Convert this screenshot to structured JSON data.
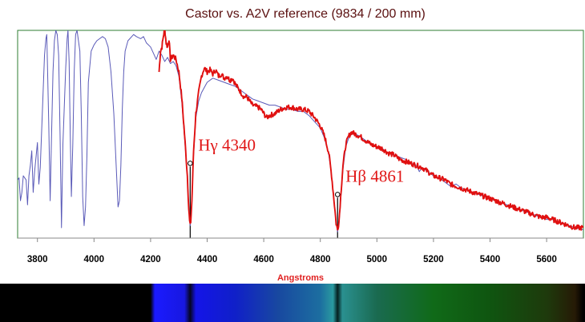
{
  "chart_data": {
    "type": "line",
    "title": "Castor vs. A2V reference (9834 / 200 mm)",
    "xlabel": "Angstroms",
    "ylabel": "",
    "xlim": [
      3730,
      5730
    ],
    "ylim": [
      0,
      1
    ],
    "x_ticks": [
      3800,
      4000,
      4200,
      4400,
      4600,
      4800,
      5000,
      5200,
      5400,
      5600
    ],
    "grid": false,
    "series": [
      {
        "role": "reference",
        "color": "#5a5ab8",
        "points": [
          [
            3730,
            0.28
          ],
          [
            3735,
            0.29
          ],
          [
            3740,
            0.18
          ],
          [
            3745,
            0.22
          ],
          [
            3750,
            0.3
          ],
          [
            3760,
            0.28
          ],
          [
            3765,
            0.16
          ],
          [
            3770,
            0.3
          ],
          [
            3775,
            0.35
          ],
          [
            3780,
            0.42
          ],
          [
            3785,
            0.22
          ],
          [
            3790,
            0.32
          ],
          [
            3800,
            0.46
          ],
          [
            3805,
            0.26
          ],
          [
            3810,
            0.34
          ],
          [
            3815,
            0.52
          ],
          [
            3820,
            0.7
          ],
          [
            3825,
            0.88
          ],
          [
            3830,
            0.96
          ],
          [
            3833,
            0.98
          ],
          [
            3836,
            0.8
          ],
          [
            3840,
            0.55
          ],
          [
            3845,
            0.18
          ],
          [
            3850,
            0.5
          ],
          [
            3855,
            0.8
          ],
          [
            3860,
            0.95
          ],
          [
            3865,
            1.0
          ],
          [
            3870,
            0.98
          ],
          [
            3875,
            0.88
          ],
          [
            3880,
            0.5
          ],
          [
            3885,
            0.05
          ],
          [
            3890,
            0.45
          ],
          [
            3900,
            0.82
          ],
          [
            3905,
            0.96
          ],
          [
            3908,
            1.0
          ],
          [
            3912,
            0.85
          ],
          [
            3916,
            0.5
          ],
          [
            3920,
            0.2
          ],
          [
            3925,
            0.45
          ],
          [
            3930,
            0.8
          ],
          [
            3935,
            0.98
          ],
          [
            3940,
            1.0
          ],
          [
            3950,
            0.9
          ],
          [
            3955,
            0.6
          ],
          [
            3960,
            0.2
          ],
          [
            3965,
            0.06
          ],
          [
            3970,
            0.15
          ],
          [
            3975,
            0.4
          ],
          [
            3980,
            0.75
          ],
          [
            3990,
            0.9
          ],
          [
            4000,
            0.93
          ],
          [
            4010,
            0.95
          ],
          [
            4020,
            0.96
          ],
          [
            4030,
            0.97
          ],
          [
            4040,
            0.96
          ],
          [
            4050,
            0.92
          ],
          [
            4060,
            0.8
          ],
          [
            4070,
            0.6
          ],
          [
            4080,
            0.3
          ],
          [
            4085,
            0.15
          ],
          [
            4090,
            0.18
          ],
          [
            4095,
            0.35
          ],
          [
            4100,
            0.62
          ],
          [
            4105,
            0.8
          ],
          [
            4110,
            0.9
          ],
          [
            4120,
            0.95
          ],
          [
            4140,
            0.98
          ],
          [
            4150,
            0.97
          ],
          [
            4165,
            0.96
          ],
          [
            4175,
            0.97
          ],
          [
            4185,
            0.94
          ],
          [
            4200,
            0.92
          ],
          [
            4210,
            0.89
          ],
          [
            4220,
            0.86
          ],
          [
            4230,
            0.9
          ],
          [
            4240,
            0.88
          ],
          [
            4250,
            0.85
          ],
          [
            4260,
            0.87
          ],
          [
            4270,
            0.84
          ],
          [
            4280,
            0.85
          ],
          [
            4290,
            0.83
          ],
          [
            4300,
            0.78
          ],
          [
            4310,
            0.66
          ],
          [
            4320,
            0.48
          ],
          [
            4330,
            0.3
          ],
          [
            4335,
            0.15
          ],
          [
            4338,
            0.08
          ],
          [
            4340,
            0.06
          ],
          [
            4342,
            0.08
          ],
          [
            4346,
            0.18
          ],
          [
            4352,
            0.4
          ],
          [
            4360,
            0.58
          ],
          [
            4370,
            0.66
          ],
          [
            4380,
            0.7
          ],
          [
            4400,
            0.75
          ],
          [
            4420,
            0.77
          ],
          [
            4440,
            0.76
          ],
          [
            4460,
            0.75
          ],
          [
            4480,
            0.74
          ],
          [
            4500,
            0.73
          ],
          [
            4520,
            0.71
          ],
          [
            4540,
            0.69
          ],
          [
            4560,
            0.67
          ],
          [
            4580,
            0.66
          ],
          [
            4600,
            0.65
          ],
          [
            4620,
            0.64
          ],
          [
            4640,
            0.64
          ],
          [
            4660,
            0.63
          ],
          [
            4680,
            0.62
          ],
          [
            4700,
            0.62
          ],
          [
            4720,
            0.61
          ],
          [
            4740,
            0.61
          ],
          [
            4760,
            0.59
          ],
          [
            4780,
            0.56
          ],
          [
            4800,
            0.53
          ],
          [
            4815,
            0.48
          ],
          [
            4830,
            0.4
          ],
          [
            4840,
            0.3
          ],
          [
            4850,
            0.16
          ],
          [
            4856,
            0.07
          ],
          [
            4861,
            0.03
          ],
          [
            4866,
            0.07
          ],
          [
            4872,
            0.18
          ],
          [
            4880,
            0.33
          ],
          [
            4890,
            0.44
          ],
          [
            4900,
            0.48
          ],
          [
            4910,
            0.5
          ],
          [
            4925,
            0.5
          ],
          [
            4940,
            0.49
          ],
          [
            4960,
            0.47
          ],
          [
            4980,
            0.45
          ],
          [
            5000,
            0.44
          ],
          [
            5020,
            0.43
          ],
          [
            5040,
            0.41
          ],
          [
            5060,
            0.4
          ],
          [
            5080,
            0.39
          ],
          [
            5100,
            0.38
          ],
          [
            5120,
            0.36
          ],
          [
            5140,
            0.35
          ],
          [
            5150,
            0.32
          ],
          [
            5160,
            0.34
          ],
          [
            5180,
            0.32
          ],
          [
            5200,
            0.3
          ],
          [
            5220,
            0.29
          ],
          [
            5240,
            0.27
          ],
          [
            5260,
            0.25
          ],
          [
            5280,
            0.26
          ],
          [
            5300,
            0.24
          ],
          [
            5320,
            0.23
          ],
          [
            5340,
            0.22
          ],
          [
            5360,
            0.21
          ],
          [
            5380,
            0.2
          ],
          [
            5400,
            0.19
          ],
          [
            5420,
            0.18
          ],
          [
            5440,
            0.17
          ],
          [
            5460,
            0.16
          ],
          [
            5480,
            0.15
          ],
          [
            5500,
            0.14
          ],
          [
            5520,
            0.13
          ],
          [
            5540,
            0.12
          ],
          [
            5560,
            0.11
          ],
          [
            5580,
            0.1
          ],
          [
            5600,
            0.09
          ],
          [
            5620,
            0.09
          ],
          [
            5640,
            0.08
          ],
          [
            5660,
            0.07
          ],
          [
            5680,
            0.06
          ],
          [
            5700,
            0.05
          ],
          [
            5730,
            0.04
          ]
        ]
      },
      {
        "role": "observed",
        "color": "#e01010",
        "points": [
          [
            4230,
            0.8
          ],
          [
            4235,
            0.9
          ],
          [
            4240,
            0.92
          ],
          [
            4245,
            0.97
          ],
          [
            4250,
            1.01
          ],
          [
            4255,
            0.94
          ],
          [
            4260,
            0.92
          ],
          [
            4265,
            0.96
          ],
          [
            4270,
            0.86
          ],
          [
            4280,
            0.88
          ],
          [
            4290,
            0.86
          ],
          [
            4300,
            0.8
          ],
          [
            4310,
            0.68
          ],
          [
            4320,
            0.5
          ],
          [
            4330,
            0.3
          ],
          [
            4335,
            0.14
          ],
          [
            4338,
            0.08
          ],
          [
            4340,
            0.06
          ],
          [
            4342,
            0.08
          ],
          [
            4346,
            0.18
          ],
          [
            4352,
            0.42
          ],
          [
            4360,
            0.6
          ],
          [
            4370,
            0.7
          ],
          [
            4380,
            0.78
          ],
          [
            4390,
            0.82
          ],
          [
            4400,
            0.8
          ],
          [
            4410,
            0.81
          ],
          [
            4420,
            0.79
          ],
          [
            4430,
            0.81
          ],
          [
            4440,
            0.78
          ],
          [
            4450,
            0.79
          ],
          [
            4460,
            0.77
          ],
          [
            4470,
            0.78
          ],
          [
            4480,
            0.76
          ],
          [
            4490,
            0.77
          ],
          [
            4500,
            0.74
          ],
          [
            4510,
            0.72
          ],
          [
            4520,
            0.7
          ],
          [
            4530,
            0.68
          ],
          [
            4540,
            0.68
          ],
          [
            4550,
            0.66
          ],
          [
            4560,
            0.64
          ],
          [
            4580,
            0.63
          ],
          [
            4590,
            0.62
          ],
          [
            4600,
            0.6
          ],
          [
            4610,
            0.58
          ],
          [
            4620,
            0.59
          ],
          [
            4640,
            0.6
          ],
          [
            4660,
            0.62
          ],
          [
            4680,
            0.63
          ],
          [
            4700,
            0.63
          ],
          [
            4720,
            0.62
          ],
          [
            4740,
            0.62
          ],
          [
            4760,
            0.61
          ],
          [
            4780,
            0.58
          ],
          [
            4800,
            0.54
          ],
          [
            4815,
            0.49
          ],
          [
            4830,
            0.41
          ],
          [
            4840,
            0.3
          ],
          [
            4850,
            0.16
          ],
          [
            4856,
            0.07
          ],
          [
            4861,
            0.04
          ],
          [
            4866,
            0.08
          ],
          [
            4872,
            0.2
          ],
          [
            4880,
            0.35
          ],
          [
            4890,
            0.45
          ],
          [
            4900,
            0.49
          ],
          [
            4910,
            0.51
          ],
          [
            4925,
            0.5
          ],
          [
            4940,
            0.49
          ],
          [
            4960,
            0.47
          ],
          [
            4980,
            0.45
          ],
          [
            5000,
            0.44
          ],
          [
            5020,
            0.43
          ],
          [
            5040,
            0.41
          ],
          [
            5060,
            0.4
          ],
          [
            5080,
            0.38
          ],
          [
            5100,
            0.37
          ],
          [
            5120,
            0.36
          ],
          [
            5140,
            0.35
          ],
          [
            5160,
            0.34
          ],
          [
            5180,
            0.32
          ],
          [
            5200,
            0.3
          ],
          [
            5220,
            0.29
          ],
          [
            5240,
            0.28
          ],
          [
            5260,
            0.26
          ],
          [
            5280,
            0.25
          ],
          [
            5300,
            0.24
          ],
          [
            5320,
            0.23
          ],
          [
            5340,
            0.22
          ],
          [
            5360,
            0.21
          ],
          [
            5380,
            0.2
          ],
          [
            5400,
            0.19
          ],
          [
            5420,
            0.18
          ],
          [
            5440,
            0.17
          ],
          [
            5460,
            0.16
          ],
          [
            5480,
            0.15
          ],
          [
            5500,
            0.14
          ],
          [
            5520,
            0.13
          ],
          [
            5540,
            0.12
          ],
          [
            5560,
            0.11
          ],
          [
            5580,
            0.1
          ],
          [
            5600,
            0.1
          ],
          [
            5620,
            0.09
          ],
          [
            5640,
            0.08
          ],
          [
            5660,
            0.07
          ],
          [
            5680,
            0.06
          ],
          [
            5700,
            0.05
          ],
          [
            5730,
            0.05
          ]
        ]
      }
    ],
    "markers": [
      {
        "x": 4340,
        "y": 0.36,
        "label": "Hγ 4340"
      },
      {
        "x": 4861,
        "y": 0.21,
        "label": "Hβ 4861"
      }
    ],
    "colors": {
      "frame": "#2e7d32",
      "axis": "#888888",
      "title": "#5a0f0f",
      "annotation": "#e01515",
      "xlabel": "#e02020"
    },
    "spectrum_strip": {
      "stops": [
        {
          "x": 3730,
          "color": "#000000"
        },
        {
          "x": 4200,
          "color": "#000000"
        },
        {
          "x": 4215,
          "color": "#1a1aff"
        },
        {
          "x": 4320,
          "color": "#1818e0"
        },
        {
          "x": 4340,
          "color": "#050520"
        },
        {
          "x": 4360,
          "color": "#1414e8"
        },
        {
          "x": 4500,
          "color": "#1020c8"
        },
        {
          "x": 4650,
          "color": "#1848a0"
        },
        {
          "x": 4800,
          "color": "#1c6ea0"
        },
        {
          "x": 4845,
          "color": "#2a9aa0"
        },
        {
          "x": 4861,
          "color": "#052020"
        },
        {
          "x": 4878,
          "color": "#2a9090"
        },
        {
          "x": 5000,
          "color": "#1a6a50"
        },
        {
          "x": 5200,
          "color": "#106a18"
        },
        {
          "x": 5400,
          "color": "#0f5510"
        },
        {
          "x": 5600,
          "color": "#1e3a0c"
        },
        {
          "x": 5700,
          "color": "#261a06"
        },
        {
          "x": 5730,
          "color": "#000000"
        }
      ]
    }
  }
}
